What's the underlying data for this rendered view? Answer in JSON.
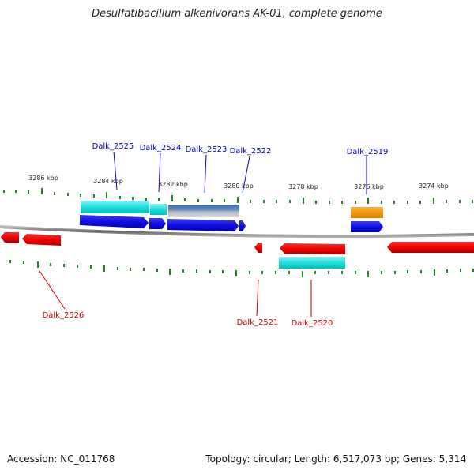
{
  "title": "Desulfatibacillum alkenivorans AK-01, complete genome",
  "footer": {
    "accession": "Accession: NC_011768",
    "summary": "Topology: circular; Length: 6,517,073 bp; Genes: 5,314"
  },
  "colors": {
    "forward_gene": "#1515e0",
    "reverse_gene": "#ee0000",
    "cyan_feature": "#22e0e0",
    "steel_feature": "#5a86b8",
    "orange_feature": "#f39a00",
    "top_label": "#0000cc",
    "bottom_label": "#cc0000",
    "tick": "#1a8a1a",
    "backbone": "#888888"
  },
  "scale_labels": [
    "3286 kbp",
    "3284 kbp",
    "3282 kbp",
    "3280 kbp",
    "3278 kbp",
    "3276 kbp",
    "3274 kbp"
  ],
  "top_gene_labels": [
    "Dalk_2525",
    "Dalk_2524",
    "Dalk_2523",
    "Dalk_2522",
    "Dalk_2519"
  ],
  "bottom_gene_labels": [
    "Dalk_2526",
    "Dalk_2521",
    "Dalk_2520"
  ]
}
